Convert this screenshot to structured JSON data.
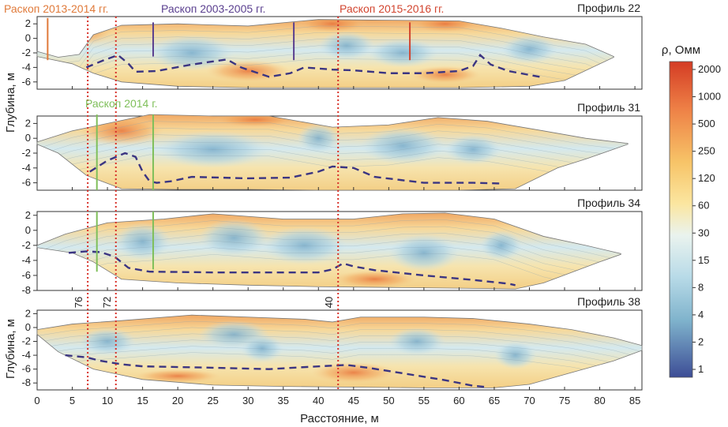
{
  "chart_data": {
    "type": "heatmap",
    "xlabel": "Расстояние, м",
    "ylabel": "Глубина, м",
    "xlim": [
      0,
      86
    ],
    "x_ticks": [
      "0",
      "5",
      "10",
      "15",
      "20",
      "25",
      "30",
      "35",
      "40",
      "45",
      "50",
      "55",
      "60",
      "65",
      "70",
      "75",
      "80",
      "85"
    ],
    "colorbar": {
      "title": "ρ, Омм",
      "ticks": [
        "2000",
        "1000",
        "500",
        "250",
        "120",
        "60",
        "30",
        "15",
        "8",
        "4",
        "2",
        "1"
      ],
      "scale": "log"
    },
    "profiles": [
      {
        "name": "Профиль 22",
        "ylim": [
          -7,
          3
        ],
        "y_ticks": [
          "2",
          "0",
          "-2",
          "-4",
          "-6"
        ],
        "top": [
          [
            0,
            -1.8
          ],
          [
            3,
            -2.6
          ],
          [
            6,
            -2.2
          ],
          [
            8,
            0.5
          ],
          [
            12,
            1.8
          ],
          [
            20,
            2.0
          ],
          [
            30,
            1.7
          ],
          [
            40,
            2.6
          ],
          [
            50,
            2.5
          ],
          [
            60,
            2.4
          ],
          [
            66,
            1.4
          ],
          [
            72,
            0.2
          ],
          [
            78,
            -0.8
          ],
          [
            82,
            -2.5
          ]
        ],
        "bottom": [
          [
            0,
            -2.5
          ],
          [
            5,
            -3.5
          ],
          [
            8,
            -4.8
          ],
          [
            12,
            -6.0
          ],
          [
            20,
            -6.6
          ],
          [
            30,
            -6.8
          ],
          [
            40,
            -6.8
          ],
          [
            50,
            -6.8
          ],
          [
            60,
            -6.8
          ],
          [
            70,
            -6.6
          ],
          [
            75,
            -5.8
          ],
          [
            82,
            -2.6
          ]
        ],
        "interface": [
          [
            7,
            -4.0
          ],
          [
            9.5,
            -3.0
          ],
          [
            11.5,
            -2.3
          ],
          [
            13,
            -3.5
          ],
          [
            14,
            -4.6
          ],
          [
            17,
            -4.5
          ],
          [
            22,
            -3.6
          ],
          [
            27,
            -2.9
          ],
          [
            29,
            -4.0
          ],
          [
            33,
            -5.3
          ],
          [
            36,
            -4.8
          ],
          [
            38,
            -4.0
          ],
          [
            42,
            -4.3
          ],
          [
            45,
            -4.4
          ],
          [
            50,
            -4.8
          ],
          [
            55,
            -4.8
          ],
          [
            60,
            -4.5
          ],
          [
            62,
            -3.8
          ],
          [
            63,
            -2.3
          ],
          [
            64.5,
            -3.6
          ],
          [
            67,
            -4.5
          ],
          [
            72,
            -5.4
          ]
        ]
      },
      {
        "name": "Профиль 31",
        "ylim": [
          -7,
          3
        ],
        "y_ticks": [
          "2",
          "0",
          "-2",
          "-4",
          "-6"
        ],
        "top": [
          [
            0,
            -0.5
          ],
          [
            5,
            1.0
          ],
          [
            10,
            2.0
          ],
          [
            16,
            3.2
          ],
          [
            25,
            3.0
          ],
          [
            33,
            3.0
          ],
          [
            42,
            1.5
          ],
          [
            50,
            1.8
          ],
          [
            57,
            2.8
          ],
          [
            64,
            2.3
          ],
          [
            72,
            1.0
          ],
          [
            78,
            0.0
          ],
          [
            84,
            -0.7
          ]
        ],
        "bottom": [
          [
            0,
            -0.8
          ],
          [
            3,
            -2.0
          ],
          [
            7,
            -5.0
          ],
          [
            12,
            -6.8
          ],
          [
            20,
            -6.9
          ],
          [
            30,
            -6.9
          ],
          [
            40,
            -7.0
          ],
          [
            50,
            -7.0
          ],
          [
            60,
            -7.0
          ],
          [
            68,
            -6.8
          ],
          [
            74,
            -4.0
          ],
          [
            78,
            -2.8
          ],
          [
            84,
            -0.8
          ]
        ],
        "interface": [
          [
            7.5,
            -4.5
          ],
          [
            10,
            -3.0
          ],
          [
            12.5,
            -2.0
          ],
          [
            14,
            -2.5
          ],
          [
            15,
            -4.5
          ],
          [
            16,
            -5.8
          ],
          [
            17,
            -6.0
          ],
          [
            19,
            -5.8
          ],
          [
            22,
            -5.2
          ],
          [
            30,
            -5.4
          ],
          [
            36,
            -5.3
          ],
          [
            40,
            -4.5
          ],
          [
            42,
            -3.8
          ],
          [
            45,
            -4.0
          ],
          [
            48,
            -5.2
          ],
          [
            55,
            -6.0
          ],
          [
            62,
            -6.0
          ],
          [
            66,
            -6.1
          ]
        ]
      },
      {
        "name": "Профиль 34",
        "ylim": [
          -8,
          2.5
        ],
        "y_ticks": [
          "2",
          "0",
          "-2",
          "-4",
          "-6",
          "-8"
        ],
        "top": [
          [
            0,
            -2.0
          ],
          [
            4,
            -0.5
          ],
          [
            10,
            1.0
          ],
          [
            18,
            1.5
          ],
          [
            25,
            2.2
          ],
          [
            35,
            1.5
          ],
          [
            45,
            1.5
          ],
          [
            52,
            2.2
          ],
          [
            58,
            2.3
          ],
          [
            65,
            1.5
          ],
          [
            72,
            -0.8
          ],
          [
            78,
            -2.0
          ],
          [
            83,
            -3.1
          ]
        ],
        "bottom": [
          [
            0,
            -2.3
          ],
          [
            5,
            -3.0
          ],
          [
            8,
            -4.2
          ],
          [
            12,
            -6.5
          ],
          [
            20,
            -7.0
          ],
          [
            30,
            -7.3
          ],
          [
            40,
            -7.5
          ],
          [
            50,
            -7.6
          ],
          [
            60,
            -7.7
          ],
          [
            68,
            -7.8
          ],
          [
            72,
            -7.0
          ],
          [
            80,
            -4.2
          ],
          [
            83,
            -3.2
          ]
        ],
        "interface": [
          [
            4.5,
            -3.0
          ],
          [
            7,
            -2.8
          ],
          [
            9,
            -2.9
          ],
          [
            11,
            -3.5
          ],
          [
            13,
            -5.0
          ],
          [
            16,
            -5.5
          ],
          [
            25,
            -5.6
          ],
          [
            35,
            -5.6
          ],
          [
            40,
            -5.6
          ],
          [
            42,
            -5.2
          ],
          [
            43.5,
            -4.4
          ],
          [
            45,
            -4.8
          ],
          [
            48,
            -5.3
          ],
          [
            55,
            -6.0
          ],
          [
            62,
            -6.6
          ],
          [
            67,
            -7.1
          ],
          [
            68,
            -7.3
          ]
        ]
      },
      {
        "name": "Профиль 38",
        "ylim": [
          -9,
          2.5
        ],
        "y_ticks": [
          "2",
          "0",
          "-2",
          "-4",
          "-6",
          "-8"
        ],
        "top": [
          [
            0,
            -0.3
          ],
          [
            5,
            0.5
          ],
          [
            12,
            1.0
          ],
          [
            22,
            1.8
          ],
          [
            30,
            1.5
          ],
          [
            38,
            1.2
          ],
          [
            42,
            0.8
          ],
          [
            46,
            1.5
          ],
          [
            55,
            1.5
          ],
          [
            62,
            1.3
          ],
          [
            70,
            0.5
          ],
          [
            76,
            -0.3
          ],
          [
            82,
            -1.5
          ],
          [
            86,
            -2.6
          ]
        ],
        "bottom": [
          [
            0,
            -1.0
          ],
          [
            3,
            -3.5
          ],
          [
            8,
            -6.0
          ],
          [
            15,
            -7.5
          ],
          [
            25,
            -8.3
          ],
          [
            35,
            -8.5
          ],
          [
            45,
            -8.6
          ],
          [
            55,
            -8.7
          ],
          [
            65,
            -8.7
          ],
          [
            70,
            -8.2
          ],
          [
            76,
            -6.5
          ],
          [
            82,
            -4.8
          ],
          [
            86,
            -3.3
          ]
        ],
        "interface": [
          [
            4,
            -4.0
          ],
          [
            7,
            -4.3
          ],
          [
            9,
            -4.8
          ],
          [
            12,
            -5.3
          ],
          [
            15,
            -5.6
          ],
          [
            25,
            -5.8
          ],
          [
            33,
            -6.0
          ],
          [
            40,
            -5.6
          ],
          [
            44,
            -5.4
          ],
          [
            47,
            -5.8
          ],
          [
            52,
            -6.6
          ],
          [
            58,
            -7.6
          ],
          [
            62,
            -8.4
          ],
          [
            64,
            -8.6
          ]
        ]
      }
    ],
    "excavations": [
      {
        "label": "Раскоп 2013-2014 гг.",
        "color": "#e07a3a",
        "lines": [
          {
            "x": 1.5,
            "profile": "Профиль 22",
            "y_top": 2.8,
            "y_bottom": -3.0
          }
        ]
      },
      {
        "label": "Раскоп 2003-2005 гг.",
        "color": "#5a3f8f",
        "lines": [
          {
            "x": 16.5,
            "profile": "Профиль 22",
            "y_top": 2.2,
            "y_bottom": -2.5
          },
          {
            "x": 36.5,
            "profile": "Профиль 22",
            "y_top": 2.2,
            "y_bottom": -3.0
          }
        ]
      },
      {
        "label": "Раскоп 2015-2016 гг.",
        "color": "#d2452f",
        "lines": [
          {
            "x": 53,
            "profile": "Профиль 22",
            "y_top": 2.2,
            "y_bottom": -3.0
          }
        ]
      },
      {
        "label": "Раскоп 2014 г.",
        "color": "#7fbf5a",
        "lines": [
          {
            "x": 8.5,
            "profile": "Профиль 31",
            "y_top": 3.2,
            "y_bottom": -7.0
          },
          {
            "x": 8.5,
            "profile": "Профиль 34",
            "y_top": 2.5,
            "y_bottom": -5.5
          },
          {
            "x": 16.5,
            "profile": "Профиль 31",
            "y_top": 3.2,
            "y_bottom": -7.0
          },
          {
            "x": 16.5,
            "profile": "Профиль 34",
            "y_top": 2.5,
            "y_bottom": -5.2
          }
        ]
      }
    ],
    "red_dotted_lines": [
      {
        "x": 7.2,
        "label": "76"
      },
      {
        "x": 11.2,
        "label": "72"
      },
      {
        "x": 42.8,
        "label": "40"
      }
    ]
  }
}
